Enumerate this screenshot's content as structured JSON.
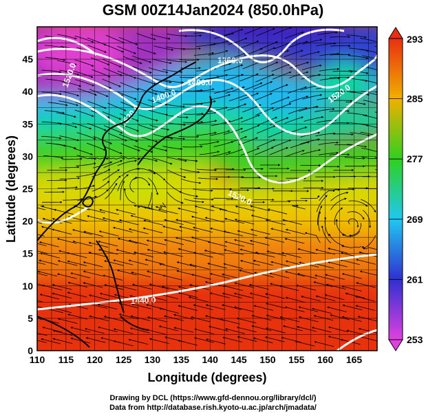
{
  "title": "GSM 00Z14Jan2024 (850.0hPa)",
  "xlabel": "Longitude (degrees)",
  "ylabel": "Latitude  (degrees)",
  "credits": {
    "line1": "Drawing by DCL (https://www.gfd-dennou.org/library/dcl/)",
    "line2": "Data from http://database.rish.kyoto-u.ac.jp/arch/jmadata/"
  },
  "chart_data": {
    "type": "heatmap",
    "title": "GSM 00Z14Jan2024 (850.0hPa)",
    "xlabel": "Longitude (degrees)",
    "ylabel": "Latitude  (degrees)",
    "xlim": [
      110,
      169
    ],
    "ylim": [
      0,
      50
    ],
    "xticks": [
      "110",
      "115",
      "120",
      "125",
      "130",
      "135",
      "140",
      "145",
      "150",
      "155",
      "160",
      "165"
    ],
    "yticks": [
      "0",
      "5",
      "10",
      "15",
      "20",
      "25",
      "30",
      "35",
      "40",
      "45"
    ],
    "grid": true,
    "colorbar": {
      "ticks": [
        "253",
        "261",
        "269",
        "277",
        "285",
        "293"
      ],
      "range": [
        253,
        293
      ],
      "colors": [
        "#e040e0",
        "#3030d0",
        "#20c8f0",
        "#30d020",
        "#f0b000",
        "#e83010"
      ]
    },
    "contour_labels": [
      "1360.0",
      "1400.0",
      "1400.0",
      "1520.0",
      "1520.0",
      "1520.0",
      "1440.0",
      "1520.0"
    ],
    "features": [
      "streamlines",
      "coastlines",
      "geopotential height contours"
    ]
  },
  "colors": {
    "frame": "#000000",
    "contour": "#ffffff",
    "streamline": "#000000"
  }
}
